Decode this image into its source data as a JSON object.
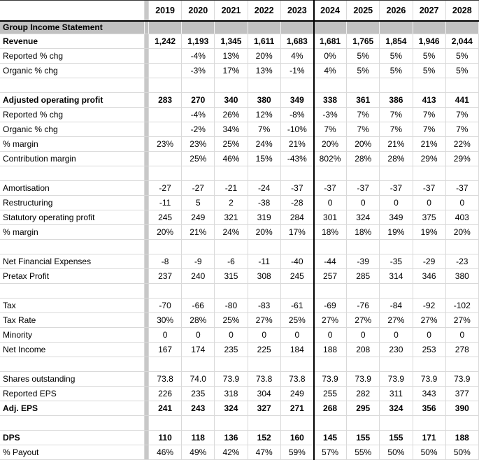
{
  "sheet": {
    "section_title": "Group Income Statement",
    "years": [
      "2019",
      "2020",
      "2021",
      "2022",
      "2023",
      "2024",
      "2025",
      "2026",
      "2027",
      "2028"
    ],
    "forecast_start_index": 5,
    "rows": [
      {
        "label": "Revenue",
        "bold": true,
        "notes": [
          5
        ],
        "values": [
          "1,242",
          "1,193",
          "1,345",
          "1,611",
          "1,683",
          "1,681",
          "1,765",
          "1,854",
          "1,946",
          "2,044"
        ]
      },
      {
        "label": "Reported % chg",
        "values": [
          "",
          "-4%",
          "13%",
          "20%",
          "4%",
          "0%",
          "5%",
          "5%",
          "5%",
          "5%"
        ]
      },
      {
        "label": "Organic % chg",
        "values": [
          "",
          "-3%",
          "17%",
          "13%",
          "-1%",
          "4%",
          "5%",
          "5%",
          "5%",
          "5%"
        ]
      },
      {
        "spacer": true
      },
      {
        "label": "Adjusted operating profit",
        "bold": true,
        "notes": [
          5
        ],
        "values": [
          "283",
          "270",
          "340",
          "380",
          "349",
          "338",
          "361",
          "386",
          "413",
          "441"
        ]
      },
      {
        "label": "Reported % chg",
        "values": [
          "",
          "-4%",
          "26%",
          "12%",
          "-8%",
          "-3%",
          "7%",
          "7%",
          "7%",
          "7%"
        ]
      },
      {
        "label": "Organic % chg",
        "values": [
          "",
          "-2%",
          "34%",
          "7%",
          "-10%",
          "7%",
          "7%",
          "7%",
          "7%",
          "7%"
        ]
      },
      {
        "label": "% margin",
        "notes": [
          5
        ],
        "values": [
          "23%",
          "23%",
          "25%",
          "24%",
          "21%",
          "20%",
          "20%",
          "21%",
          "21%",
          "22%"
        ]
      },
      {
        "label": "Contribution margin",
        "values": [
          "",
          "25%",
          "46%",
          "15%",
          "-43%",
          "802%",
          "28%",
          "28%",
          "29%",
          "29%"
        ]
      },
      {
        "spacer": true
      },
      {
        "label": "Amortisation",
        "values": [
          "-27",
          "-27",
          "-21",
          "-24",
          "-37",
          "-37",
          "-37",
          "-37",
          "-37",
          "-37"
        ]
      },
      {
        "label": "Restructuring",
        "values": [
          "-11",
          "5",
          "2",
          "-38",
          "-28",
          "0",
          "0",
          "0",
          "0",
          "0"
        ]
      },
      {
        "label": "Statutory operating profit",
        "values": [
          "245",
          "249",
          "321",
          "319",
          "284",
          "301",
          "324",
          "349",
          "375",
          "403"
        ]
      },
      {
        "label": "% margin",
        "values": [
          "20%",
          "21%",
          "24%",
          "20%",
          "17%",
          "18%",
          "18%",
          "19%",
          "19%",
          "20%"
        ]
      },
      {
        "spacer": true
      },
      {
        "label": "Net Financial Expenses",
        "values": [
          "-8",
          "-9",
          "-6",
          "-11",
          "-40",
          "-44",
          "-39",
          "-35",
          "-29",
          "-23"
        ]
      },
      {
        "label": "Pretax Profit",
        "values": [
          "237",
          "240",
          "315",
          "308",
          "245",
          "257",
          "285",
          "314",
          "346",
          "380"
        ]
      },
      {
        "spacer": true
      },
      {
        "label": "Tax",
        "values": [
          "-70",
          "-66",
          "-80",
          "-83",
          "-61",
          "-69",
          "-76",
          "-84",
          "-92",
          "-102"
        ]
      },
      {
        "label": "Tax Rate",
        "values": [
          "30%",
          "28%",
          "25%",
          "27%",
          "25%",
          "27%",
          "27%",
          "27%",
          "27%",
          "27%"
        ]
      },
      {
        "label": "Minority",
        "values": [
          "0",
          "0",
          "0",
          "0",
          "0",
          "0",
          "0",
          "0",
          "0",
          "0"
        ]
      },
      {
        "label": "Net Income",
        "values": [
          "167",
          "174",
          "235",
          "225",
          "184",
          "188",
          "208",
          "230",
          "253",
          "278"
        ]
      },
      {
        "spacer": true
      },
      {
        "label": "Shares outstanding",
        "values": [
          "73.8",
          "74.0",
          "73.9",
          "73.8",
          "73.8",
          "73.9",
          "73.9",
          "73.9",
          "73.9",
          "73.9"
        ]
      },
      {
        "label": "Reported EPS",
        "values": [
          "226",
          "235",
          "318",
          "304",
          "249",
          "255",
          "282",
          "311",
          "343",
          "377"
        ]
      },
      {
        "label": "Adj. EPS",
        "bold": true,
        "notes": [
          5
        ],
        "values": [
          "241",
          "243",
          "324",
          "327",
          "271",
          "268",
          "295",
          "324",
          "356",
          "390"
        ]
      },
      {
        "spacer": true
      },
      {
        "label": "DPS",
        "bold": true,
        "values": [
          "110",
          "118",
          "136",
          "152",
          "160",
          "145",
          "155",
          "155",
          "171",
          "188"
        ]
      },
      {
        "label": "% Payout",
        "values": [
          "46%",
          "49%",
          "42%",
          "47%",
          "59%",
          "57%",
          "55%",
          "50%",
          "50%",
          "50%"
        ]
      }
    ]
  },
  "colors": {
    "band": "#c1c1c1",
    "strip": "#c8c8c8",
    "gridline": "#d9d9d9",
    "note": "#f5a623",
    "divider": "#000000"
  }
}
